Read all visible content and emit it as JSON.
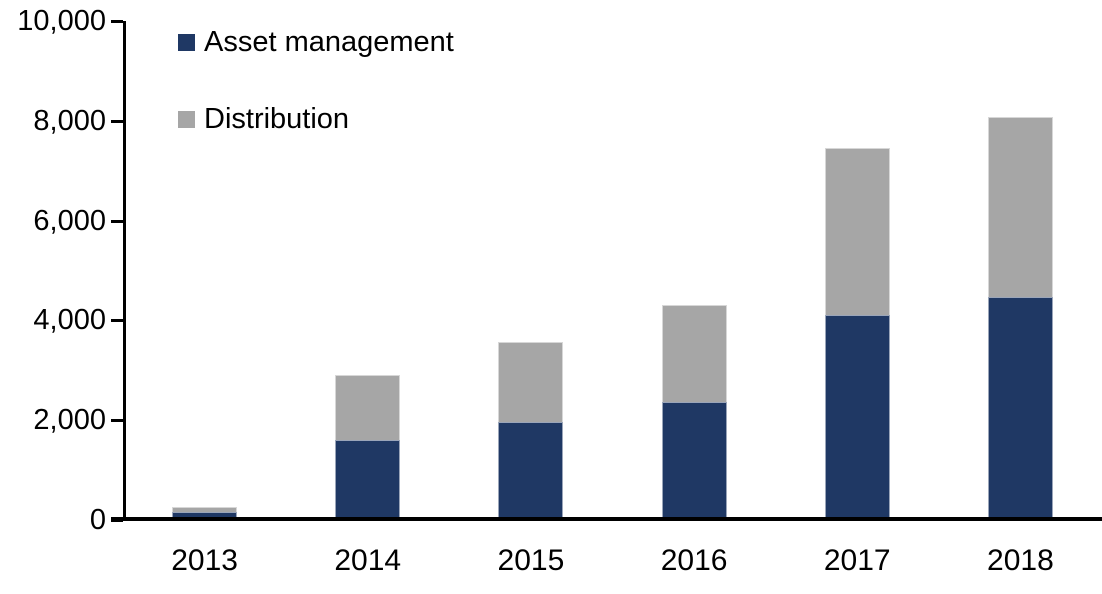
{
  "chart_data": {
    "type": "bar",
    "stacked": true,
    "title": "",
    "xlabel": "",
    "ylabel": "",
    "categories": [
      "2013",
      "2014",
      "2015",
      "2016",
      "2017",
      "2018"
    ],
    "series": [
      {
        "name": "Asset management",
        "color": "#1F3864",
        "values": [
          100,
          1550,
          1900,
          2300,
          4050,
          4400
        ]
      },
      {
        "name": "Distribution",
        "color": "#A6A6A6",
        "values": [
          100,
          1300,
          1600,
          1950,
          3350,
          3600
        ]
      }
    ],
    "totals": [
      200,
      2850,
      3500,
      4250,
      7400,
      8000
    ],
    "ylim": [
      0,
      10000
    ],
    "ytick_step": 2000,
    "ytick_labels": [
      "0",
      "2,000",
      "4,000",
      "6,000",
      "8,000",
      "10,000"
    ],
    "grid": false,
    "legend_position": "top-left",
    "axis_color": "#000000",
    "text_color": "#000000",
    "background_color": "#FFFFFF"
  }
}
